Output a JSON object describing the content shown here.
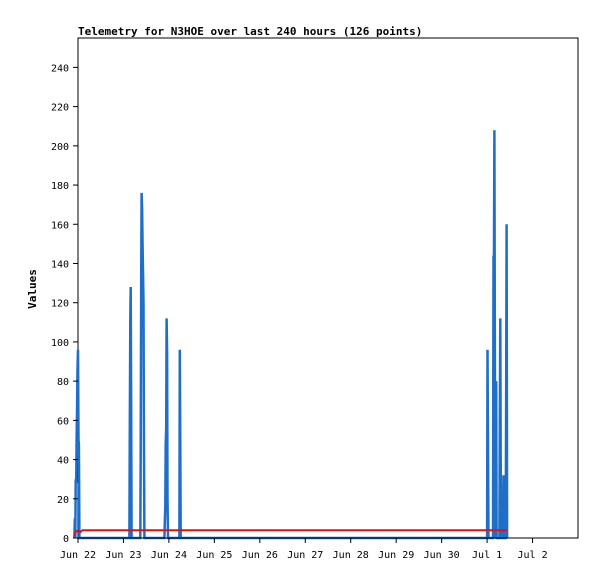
{
  "chart_data": {
    "type": "line",
    "title": "Telemetry for N3HOE over last 240 hours (126 points)",
    "ylabel": "Values",
    "xlabel": "",
    "ylim": [
      0,
      255
    ],
    "yticks": [
      0,
      20,
      40,
      60,
      80,
      100,
      120,
      140,
      160,
      180,
      200,
      220,
      240
    ],
    "xlim": [
      0,
      11
    ],
    "xticks": [
      {
        "label": "Jun 22",
        "day": 0
      },
      {
        "label": "Jun 23",
        "day": 1
      },
      {
        "label": "Jun 24",
        "day": 2
      },
      {
        "label": "Jun 25",
        "day": 3
      },
      {
        "label": "Jun 26",
        "day": 4
      },
      {
        "label": "Jun 27",
        "day": 5
      },
      {
        "label": "Jun 28",
        "day": 6
      },
      {
        "label": "Jun 29",
        "day": 7
      },
      {
        "label": "Jun 30",
        "day": 8
      },
      {
        "label": "Jul 1",
        "day": 9
      },
      {
        "label": "Jul 2",
        "day": 10
      }
    ],
    "grid": false,
    "legend": "none",
    "series": [
      {
        "color": "#1f6fc8",
        "points": [
          [
            -0.08,
            0
          ],
          [
            -0.07,
            10
          ],
          [
            -0.06,
            0
          ],
          [
            -0.05,
            30
          ],
          [
            -0.04,
            28
          ],
          [
            -0.03,
            50
          ],
          [
            -0.02,
            68
          ],
          [
            -0.01,
            86
          ],
          [
            0.0,
            96
          ],
          [
            0.01,
            50
          ],
          [
            0.02,
            48
          ],
          [
            0.03,
            0
          ],
          [
            1.13,
            0
          ],
          [
            1.14,
            56
          ],
          [
            1.15,
            112
          ],
          [
            1.16,
            128
          ],
          [
            1.17,
            64
          ],
          [
            1.18,
            0
          ],
          [
            1.37,
            0
          ],
          [
            1.38,
            44
          ],
          [
            1.39,
            132
          ],
          [
            1.4,
            176
          ],
          [
            1.41,
            168
          ],
          [
            1.42,
            152
          ],
          [
            1.43,
            136
          ],
          [
            1.44,
            120
          ],
          [
            1.45,
            56
          ],
          [
            1.46,
            0
          ],
          [
            1.9,
            0
          ],
          [
            1.91,
            8
          ],
          [
            1.92,
            16
          ],
          [
            1.93,
            48
          ],
          [
            1.94,
            56
          ],
          [
            1.95,
            112
          ],
          [
            1.96,
            94
          ],
          [
            1.97,
            20
          ],
          [
            1.98,
            0
          ],
          [
            2.23,
            0
          ],
          [
            2.24,
            96
          ],
          [
            2.25,
            48
          ],
          [
            2.26,
            0
          ],
          [
            9.0,
            0
          ],
          [
            9.01,
            96
          ],
          [
            9.02,
            48
          ],
          [
            9.03,
            0
          ],
          [
            9.13,
            0
          ],
          [
            9.14,
            144
          ],
          [
            9.15,
            136
          ],
          [
            9.16,
            208
          ],
          [
            9.17,
            112
          ],
          [
            9.18,
            0
          ],
          [
            9.2,
            80
          ],
          [
            9.21,
            0
          ],
          [
            9.27,
            0
          ],
          [
            9.28,
            56
          ],
          [
            9.29,
            112
          ],
          [
            9.3,
            40
          ],
          [
            9.31,
            0
          ],
          [
            9.35,
            0
          ],
          [
            9.36,
            32
          ],
          [
            9.37,
            0
          ],
          [
            9.41,
            0
          ],
          [
            9.42,
            80
          ],
          [
            9.43,
            160
          ],
          [
            9.44,
            0
          ]
        ]
      },
      {
        "color": "#e01010",
        "points": [
          [
            -0.08,
            1
          ],
          [
            -0.05,
            3
          ],
          [
            0.0,
            4
          ],
          [
            0.05,
            3
          ],
          [
            0.1,
            4
          ],
          [
            0.2,
            4
          ],
          [
            2.0,
            4
          ],
          [
            5.0,
            4
          ],
          [
            8.0,
            4
          ],
          [
            9.0,
            4
          ],
          [
            9.44,
            4
          ]
        ]
      }
    ]
  }
}
